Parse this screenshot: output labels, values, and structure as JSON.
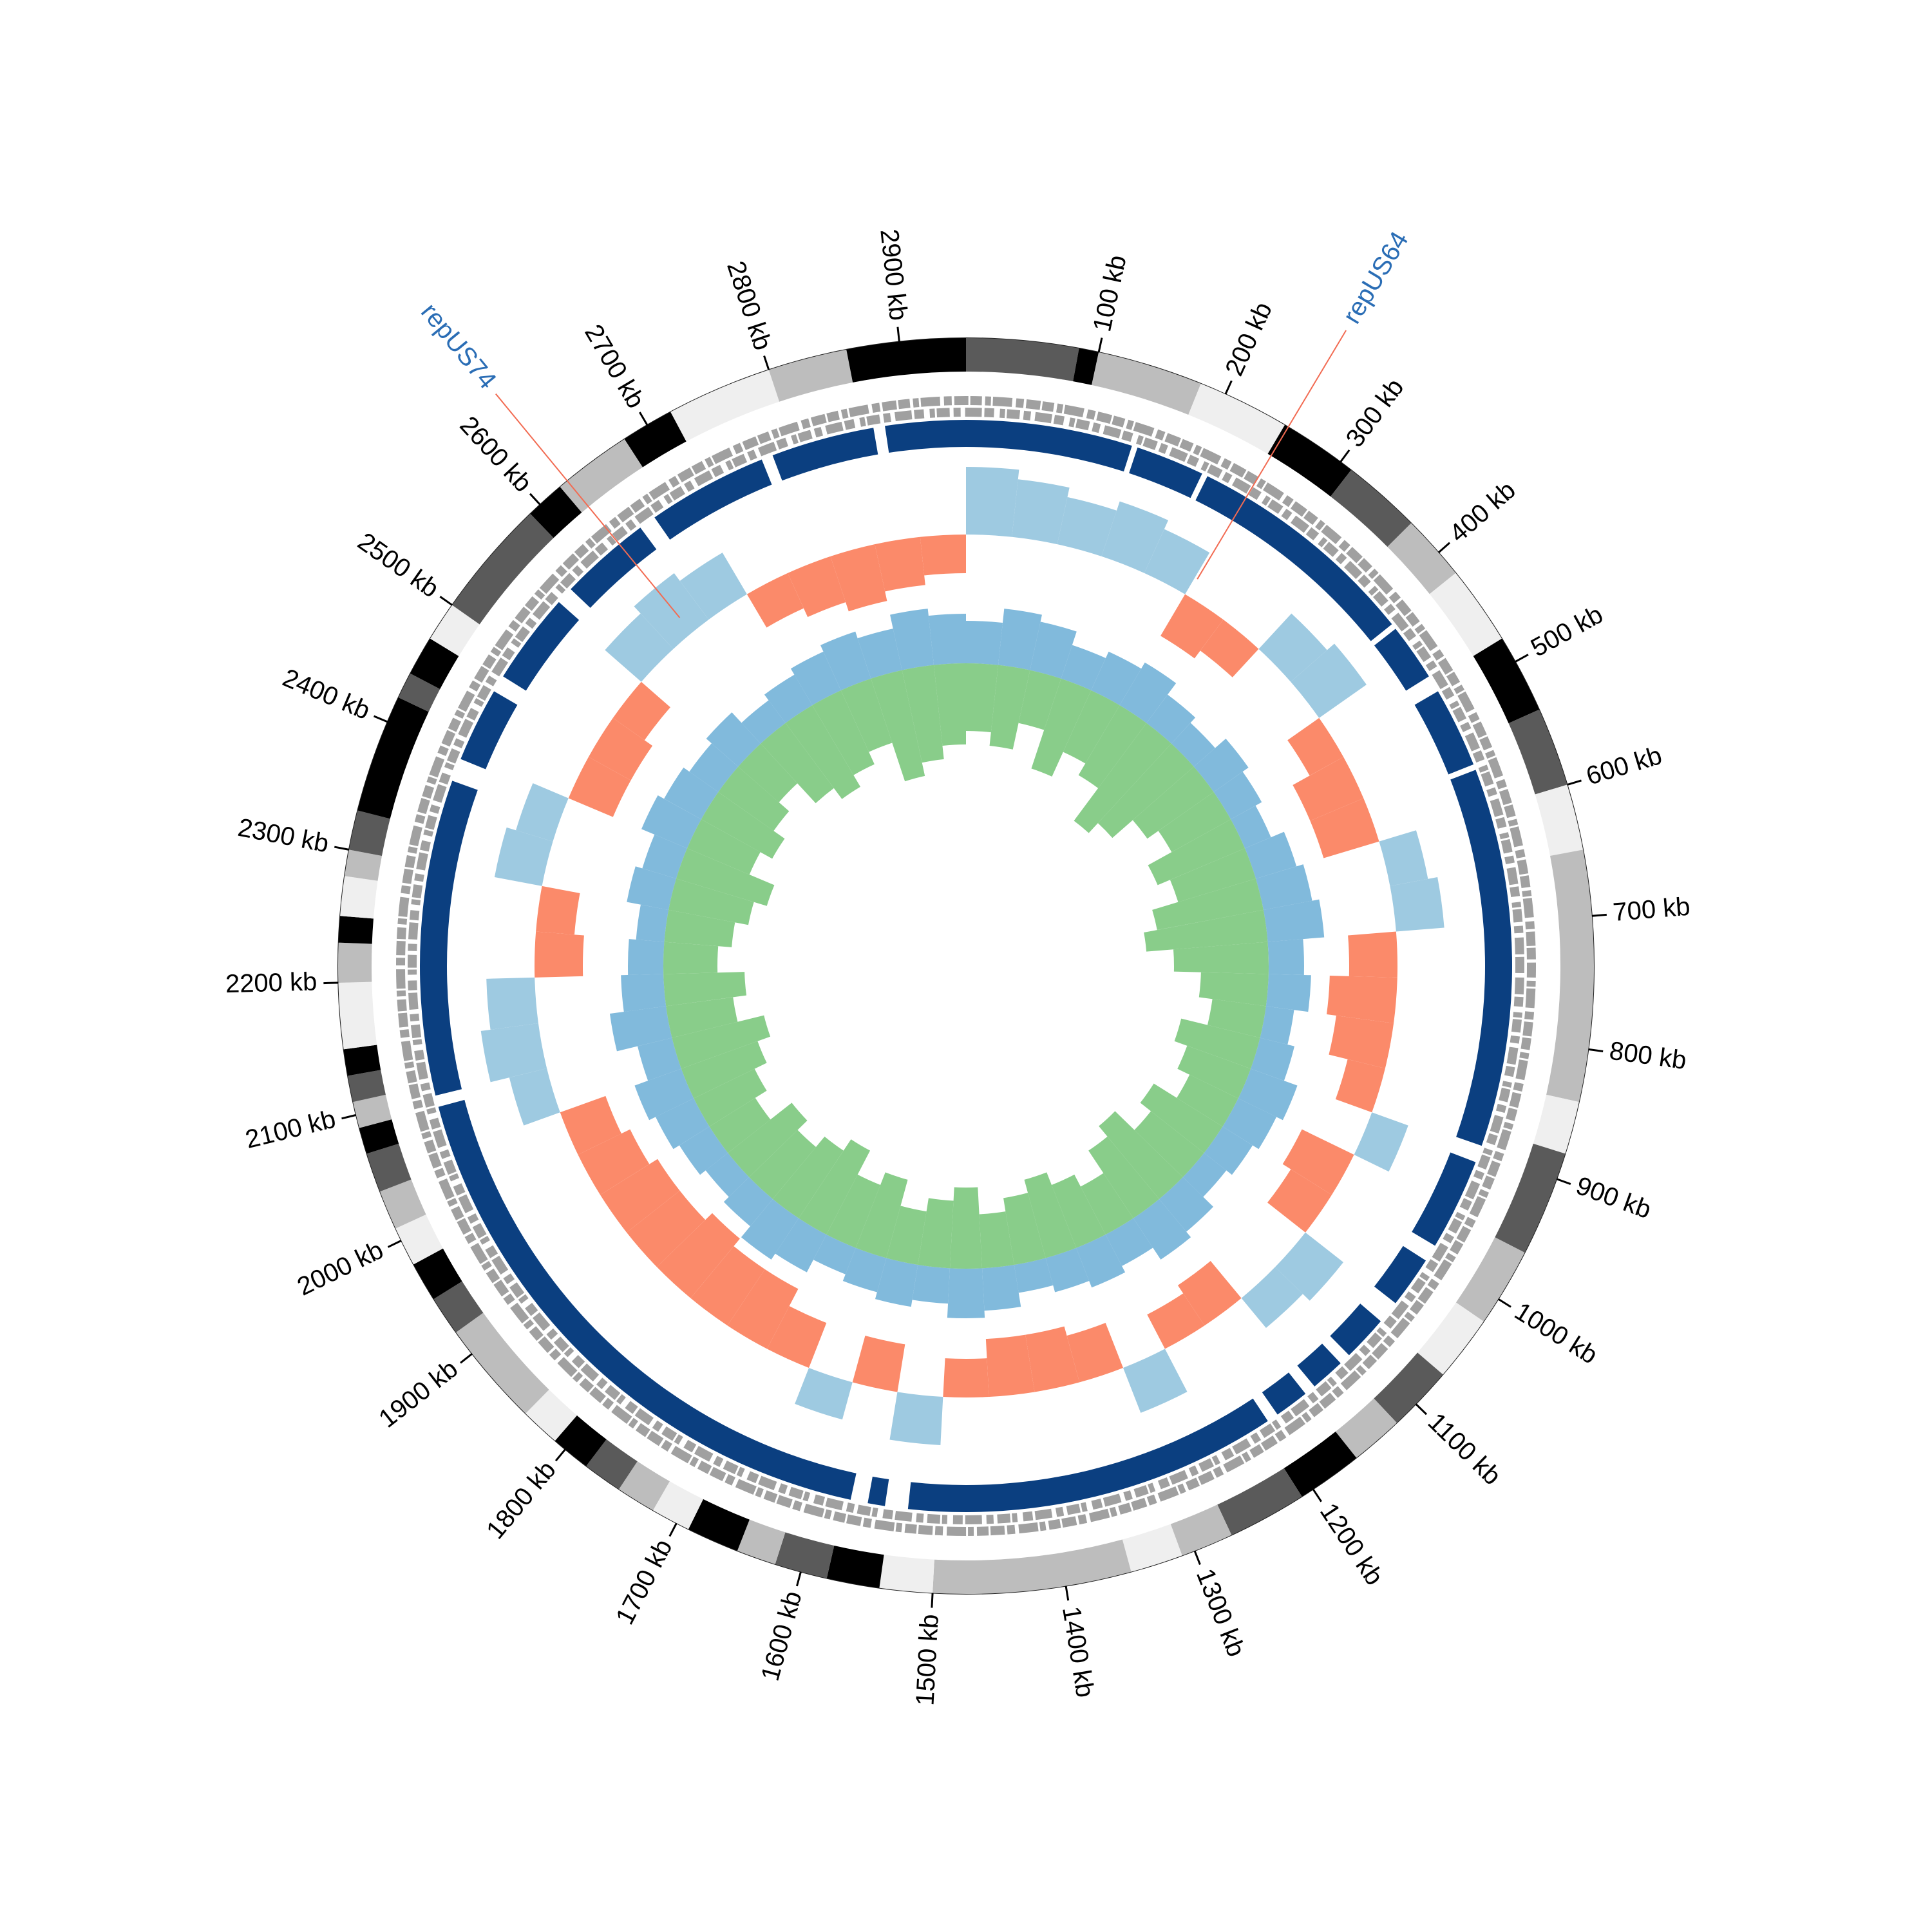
{
  "chart_data": {
    "type": "circular_genome",
    "xlim": [
      0,
      2950
    ],
    "xticks": [
      {
        "value": 100,
        "label": "100 kb"
      },
      {
        "value": 200,
        "label": "200 kb"
      },
      {
        "value": 300,
        "label": "300 kb"
      },
      {
        "value": 400,
        "label": "400 kb"
      },
      {
        "value": 500,
        "label": "500 kb"
      },
      {
        "value": 600,
        "label": "600 kb"
      },
      {
        "value": 700,
        "label": "700 kb"
      },
      {
        "value": 800,
        "label": "800 kb"
      },
      {
        "value": 900,
        "label": "900 kb"
      },
      {
        "value": 1000,
        "label": "1000 kb"
      },
      {
        "value": 1100,
        "label": "1100 kb"
      },
      {
        "value": 1200,
        "label": "1200 kb"
      },
      {
        "value": 1300,
        "label": "1300 kb"
      },
      {
        "value": 1400,
        "label": "1400 kb"
      },
      {
        "value": 1500,
        "label": "1500 kb"
      },
      {
        "value": 1600,
        "label": "1600 kb"
      },
      {
        "value": 1700,
        "label": "1700 kb"
      },
      {
        "value": 1800,
        "label": "1800 kb"
      },
      {
        "value": 1900,
        "label": "1900 kb"
      },
      {
        "value": 2000,
        "label": "2000 kb"
      },
      {
        "value": 2100,
        "label": "2100 kb"
      },
      {
        "value": 2200,
        "label": "2200 kb"
      },
      {
        "value": 2300,
        "label": "2300 kb"
      },
      {
        "value": 2400,
        "label": "2400 kb"
      },
      {
        "value": 2500,
        "label": "2500 kb"
      },
      {
        "value": 2600,
        "label": "2600 kb"
      },
      {
        "value": 2700,
        "label": "2700 kb"
      },
      {
        "value": 2800,
        "label": "2800 kb"
      },
      {
        "value": 2900,
        "label": "2900 kb"
      }
    ],
    "contigs": [
      {
        "start": 0,
        "end": 85,
        "color": "#5a5a5a"
      },
      {
        "start": 85,
        "end": 100,
        "color": "#000000"
      },
      {
        "start": 100,
        "end": 180,
        "color": "#bdbdbd"
      },
      {
        "start": 180,
        "end": 250,
        "color": "#efefef"
      },
      {
        "start": 250,
        "end": 310,
        "color": "#000000"
      },
      {
        "start": 310,
        "end": 370,
        "color": "#5a5a5a"
      },
      {
        "start": 370,
        "end": 420,
        "color": "#bdbdbd"
      },
      {
        "start": 420,
        "end": 480,
        "color": "#efefef"
      },
      {
        "start": 480,
        "end": 540,
        "color": "#000000"
      },
      {
        "start": 540,
        "end": 600,
        "color": "#5a5a5a"
      },
      {
        "start": 600,
        "end": 650,
        "color": "#efefef"
      },
      {
        "start": 650,
        "end": 840,
        "color": "#bdbdbd"
      },
      {
        "start": 840,
        "end": 880,
        "color": "#efefef"
      },
      {
        "start": 880,
        "end": 960,
        "color": "#5a5a5a"
      },
      {
        "start": 960,
        "end": 1020,
        "color": "#bdbdbd"
      },
      {
        "start": 1020,
        "end": 1070,
        "color": "#efefef"
      },
      {
        "start": 1070,
        "end": 1120,
        "color": "#5a5a5a"
      },
      {
        "start": 1120,
        "end": 1160,
        "color": "#bdbdbd"
      },
      {
        "start": 1160,
        "end": 1210,
        "color": "#000000"
      },
      {
        "start": 1210,
        "end": 1270,
        "color": "#5a5a5a"
      },
      {
        "start": 1270,
        "end": 1310,
        "color": "#bdbdbd"
      },
      {
        "start": 1310,
        "end": 1350,
        "color": "#efefef"
      },
      {
        "start": 1350,
        "end": 1500,
        "color": "#bdbdbd"
      },
      {
        "start": 1500,
        "end": 1540,
        "color": "#efefef"
      },
      {
        "start": 1540,
        "end": 1580,
        "color": "#000000"
      },
      {
        "start": 1580,
        "end": 1620,
        "color": "#5a5a5a"
      },
      {
        "start": 1620,
        "end": 1650,
        "color": "#bdbdbd"
      },
      {
        "start": 1650,
        "end": 1690,
        "color": "#000000"
      },
      {
        "start": 1690,
        "end": 1720,
        "color": "#efefef"
      },
      {
        "start": 1720,
        "end": 1750,
        "color": "#bdbdbd"
      },
      {
        "start": 1750,
        "end": 1780,
        "color": "#5a5a5a"
      },
      {
        "start": 1780,
        "end": 1810,
        "color": "#000000"
      },
      {
        "start": 1810,
        "end": 1840,
        "color": "#efefef"
      },
      {
        "start": 1840,
        "end": 1920,
        "color": "#bdbdbd"
      },
      {
        "start": 1920,
        "end": 1950,
        "color": "#5a5a5a"
      },
      {
        "start": 1950,
        "end": 1980,
        "color": "#000000"
      },
      {
        "start": 1980,
        "end": 2010,
        "color": "#efefef"
      },
      {
        "start": 2010,
        "end": 2040,
        "color": "#bdbdbd"
      },
      {
        "start": 2040,
        "end": 2070,
        "color": "#5a5a5a"
      },
      {
        "start": 2070,
        "end": 2090,
        "color": "#000000"
      },
      {
        "start": 2090,
        "end": 2110,
        "color": "#bdbdbd"
      },
      {
        "start": 2110,
        "end": 2130,
        "color": "#5a5a5a"
      },
      {
        "start": 2130,
        "end": 2150,
        "color": "#000000"
      },
      {
        "start": 2150,
        "end": 2200,
        "color": "#efefef"
      },
      {
        "start": 2200,
        "end": 2230,
        "color": "#bdbdbd"
      },
      {
        "start": 2230,
        "end": 2250,
        "color": "#000000"
      },
      {
        "start": 2250,
        "end": 2280,
        "color": "#efefef"
      },
      {
        "start": 2280,
        "end": 2300,
        "color": "#bdbdbd"
      },
      {
        "start": 2300,
        "end": 2330,
        "color": "#5a5a5a"
      },
      {
        "start": 2330,
        "end": 2420,
        "color": "#000000"
      },
      {
        "start": 2420,
        "end": 2440,
        "color": "#5a5a5a"
      },
      {
        "start": 2440,
        "end": 2470,
        "color": "#000000"
      },
      {
        "start": 2470,
        "end": 2500,
        "color": "#efefef"
      },
      {
        "start": 2500,
        "end": 2590,
        "color": "#5a5a5a"
      },
      {
        "start": 2590,
        "end": 2620,
        "color": "#000000"
      },
      {
        "start": 2620,
        "end": 2680,
        "color": "#bdbdbd"
      },
      {
        "start": 2680,
        "end": 2720,
        "color": "#000000"
      },
      {
        "start": 2720,
        "end": 2800,
        "color": "#efefef"
      },
      {
        "start": 2800,
        "end": 2860,
        "color": "#bdbdbd"
      },
      {
        "start": 2860,
        "end": 2950,
        "color": "#000000"
      }
    ],
    "blocks_color": "#0b3f80",
    "blocks": [
      {
        "start": 0,
        "end": 145
      },
      {
        "start": 150,
        "end": 210
      },
      {
        "start": 215,
        "end": 420
      },
      {
        "start": 425,
        "end": 475
      },
      {
        "start": 490,
        "end": 560
      },
      {
        "start": 565,
        "end": 895
      },
      {
        "start": 910,
        "end": 990
      },
      {
        "start": 1005,
        "end": 1050
      },
      {
        "start": 1070,
        "end": 1110
      },
      {
        "start": 1120,
        "end": 1150
      },
      {
        "start": 1160,
        "end": 1190
      },
      {
        "start": 1200,
        "end": 1525
      },
      {
        "start": 1545,
        "end": 1560
      },
      {
        "start": 1575,
        "end": 2090
      },
      {
        "start": 2100,
        "end": 2375
      },
      {
        "start": 2395,
        "end": 2460
      },
      {
        "start": 2475,
        "end": 2555
      },
      {
        "start": 2570,
        "end": 2650
      },
      {
        "start": 2665,
        "end": 2770
      },
      {
        "start": 2780,
        "end": 2870
      },
      {
        "start": 2880,
        "end": 2950
      }
    ],
    "bins": [
      0,
      50,
      100,
      150,
      200,
      250,
      300,
      350,
      400,
      450,
      500,
      550,
      600,
      650,
      700,
      750,
      800,
      850,
      900,
      950,
      1000,
      1050,
      1100,
      1150,
      1200,
      1250,
      1300,
      1350,
      1400,
      1450,
      1500,
      1550,
      1600,
      1650,
      1700,
      1750,
      1800,
      1850,
      1900,
      1950,
      2000,
      2050,
      2100,
      2150,
      2200,
      2250,
      2300,
      2350,
      2400,
      2450,
      2500,
      2550,
      2600,
      2650,
      2700,
      2750,
      2800,
      2850,
      2900,
      2950
    ],
    "skew": {
      "ylim": [
        -1,
        1
      ],
      "pos_color": "#9ecae1",
      "neg_color": "#fb8a6a",
      "values": [
        0.7,
        0.6,
        0.5,
        0.6,
        0.5,
        -0.5,
        -0.4,
        0.5,
        0.6,
        -0.4,
        -0.6,
        -0.6,
        0.4,
        0.5,
        -0.5,
        -0.7,
        -0.6,
        -0.4,
        0.4,
        -0.6,
        -0.5,
        0.5,
        0.4,
        -0.5,
        -0.4,
        0.5,
        -0.5,
        -0.6,
        -0.6,
        -0.4,
        0.5,
        -0.5,
        0.4,
        -0.5,
        -0.7,
        -0.7,
        -0.8,
        -0.7,
        -0.7,
        -0.6,
        -0.5,
        0.4,
        0.6,
        0.5,
        -0.5,
        -0.4,
        0.5,
        0.4,
        -0.5,
        -0.5,
        -0.4,
        0.5,
        0.6,
        0.5,
        -0.4,
        -0.5,
        -0.6,
        -0.5,
        -0.4
      ]
    },
    "gc": {
      "ylim": [
        0,
        1
      ],
      "series": [
        {
          "color": "#6baed6",
          "direction": "out",
          "values": [
            0.6,
            0.8,
            0.7,
            0.5,
            0.6,
            0.7,
            0.5,
            0.4,
            0.6,
            0.5,
            0.4,
            0.6,
            0.7,
            0.8,
            0.5,
            0.6,
            0.4,
            0.5,
            0.7,
            0.6,
            0.5,
            0.4,
            0.6,
            0.7,
            0.5,
            0.6,
            0.5,
            0.4,
            0.6,
            0.7,
            0.5,
            0.6,
            0.5,
            0.4,
            0.6,
            0.7,
            0.5,
            0.4,
            0.5,
            0.6,
            0.7,
            0.5,
            0.8,
            0.6,
            0.5,
            0.4,
            0.6,
            0.5,
            0.7,
            0.6,
            0.5,
            0.6,
            0.4,
            0.5,
            0.6,
            0.7,
            0.6,
            0.8,
            0.7
          ]
        },
        {
          "color": "#74c476",
          "direction": "in",
          "values": [
            0.5,
            0.6,
            0.4,
            0.7,
            0.5,
            0.6,
            0.9,
            0.8,
            0.6,
            0.5,
            0.7,
            0.6,
            0.8,
            0.9,
            0.7,
            0.5,
            0.4,
            0.6,
            0.5,
            0.4,
            0.6,
            0.5,
            0.7,
            0.6,
            0.4,
            0.5,
            0.6,
            0.5,
            0.4,
            0.6,
            0.5,
            0.4,
            0.6,
            0.5,
            0.7,
            0.6,
            0.5,
            0.6,
            0.4,
            0.5,
            0.6,
            0.7,
            0.5,
            0.6,
            0.4,
            0.5,
            0.6,
            0.7,
            0.5,
            0.6,
            0.5,
            0.4,
            0.6,
            0.7,
            0.6,
            0.5,
            0.8,
            0.7,
            0.6
          ]
        }
      ]
    },
    "annotations": [
      {
        "label": "repUS64",
        "position": 253
      },
      {
        "label": "repUS74",
        "position": 2627
      }
    ]
  }
}
